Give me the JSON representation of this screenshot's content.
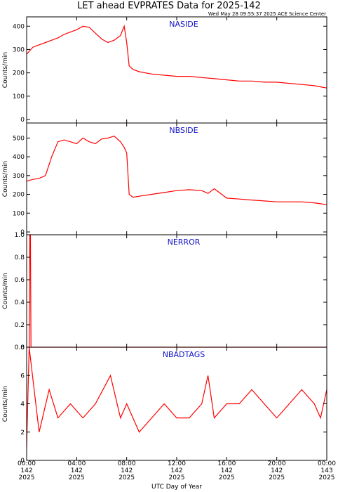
{
  "page": {
    "title": "LET ahead EVPRATES Data for 2025-142",
    "subtitle": "Wed May 28 09:55:37 2025 ACE Science Center",
    "xlabel": "UTC Day of Year"
  },
  "colors": {
    "series": "#ff0000",
    "panel_title": "#1010c8",
    "axes": "#000000"
  },
  "x_ticks": [
    {
      "time": "00:00",
      "doy": "142",
      "year": "2025"
    },
    {
      "time": "04:00",
      "doy": "142",
      "year": "2025"
    },
    {
      "time": "08:00",
      "doy": "142",
      "year": "2025"
    },
    {
      "time": "12:00",
      "doy": "142",
      "year": "2025"
    },
    {
      "time": "16:00",
      "doy": "142",
      "year": "2025"
    },
    {
      "time": "20:00",
      "doy": "142",
      "year": "2025"
    },
    {
      "time": "00:00",
      "doy": "143",
      "year": "2025"
    }
  ],
  "chart_data": [
    {
      "type": "line",
      "title": "NASIDE",
      "ylabel": "Counts/min",
      "xlim_hours": [
        0,
        24
      ],
      "ylim": [
        -15,
        440
      ],
      "yticks": [
        0,
        100,
        200,
        300,
        400
      ],
      "x": [
        0,
        0.5,
        1,
        1.5,
        2,
        2.5,
        3,
        3.5,
        4,
        4.5,
        5,
        5.5,
        6,
        6.5,
        7,
        7.5,
        7.8,
        8,
        8.2,
        8.5,
        9,
        10,
        11,
        12,
        13,
        14,
        15,
        16,
        17,
        18,
        19,
        20,
        21,
        22,
        23,
        23.5,
        24
      ],
      "y": [
        280,
        310,
        320,
        330,
        340,
        350,
        365,
        375,
        385,
        400,
        395,
        370,
        345,
        330,
        340,
        360,
        400,
        330,
        230,
        215,
        205,
        195,
        190,
        185,
        185,
        180,
        175,
        170,
        165,
        165,
        160,
        160,
        155,
        150,
        145,
        140,
        135
      ]
    },
    {
      "type": "line",
      "title": "NBSIDE",
      "ylabel": "Counts/min",
      "xlim_hours": [
        0,
        24
      ],
      "ylim": [
        -15,
        580
      ],
      "yticks": [
        0,
        100,
        200,
        300,
        400,
        500
      ],
      "x": [
        0,
        0.5,
        1,
        1.5,
        2,
        2.5,
        3,
        3.5,
        4,
        4.5,
        5,
        5.5,
        6,
        6.5,
        7,
        7.5,
        7.8,
        8,
        8.2,
        8.5,
        9,
        10,
        11,
        12,
        13,
        14,
        14.5,
        15,
        16,
        17,
        18,
        19,
        20,
        21,
        22,
        23,
        23.5,
        24
      ],
      "y": [
        270,
        280,
        285,
        300,
        400,
        480,
        490,
        480,
        470,
        500,
        480,
        470,
        495,
        500,
        510,
        480,
        450,
        420,
        200,
        185,
        190,
        200,
        210,
        220,
        225,
        220,
        205,
        230,
        180,
        175,
        170,
        165,
        160,
        160,
        160,
        155,
        150,
        145
      ]
    },
    {
      "type": "line",
      "title": "NERROR",
      "ylabel": "Counts/min",
      "xlim_hours": [
        0,
        24
      ],
      "ylim": [
        0,
        1
      ],
      "yticks": [
        0.0,
        0.2,
        0.4,
        0.6,
        0.8,
        1.0
      ],
      "x": [
        0,
        0.2,
        0.25,
        0.3,
        0.35,
        24
      ],
      "y": [
        0,
        0,
        1,
        1,
        0,
        0
      ]
    },
    {
      "type": "line",
      "title": "NBADTAGS",
      "ylabel": "Counts/min",
      "xlim_hours": [
        0,
        24
      ],
      "ylim": [
        0,
        8
      ],
      "yticks": [
        0,
        2,
        4,
        6,
        8
      ],
      "x": [
        0,
        0.2,
        1,
        1.8,
        2.5,
        3.5,
        4.5,
        5.5,
        6.7,
        7.5,
        8,
        9,
        10,
        11,
        12,
        13,
        14,
        14.5,
        15,
        16,
        17,
        18,
        19,
        20,
        21,
        22,
        23,
        23.5,
        24
      ],
      "y": [
        1,
        8,
        2,
        5,
        3,
        4,
        3,
        4,
        6,
        3,
        4,
        2,
        3,
        4,
        3,
        3,
        4,
        6,
        3,
        4,
        4,
        5,
        4,
        3,
        4,
        5,
        4,
        3,
        5
      ]
    }
  ]
}
